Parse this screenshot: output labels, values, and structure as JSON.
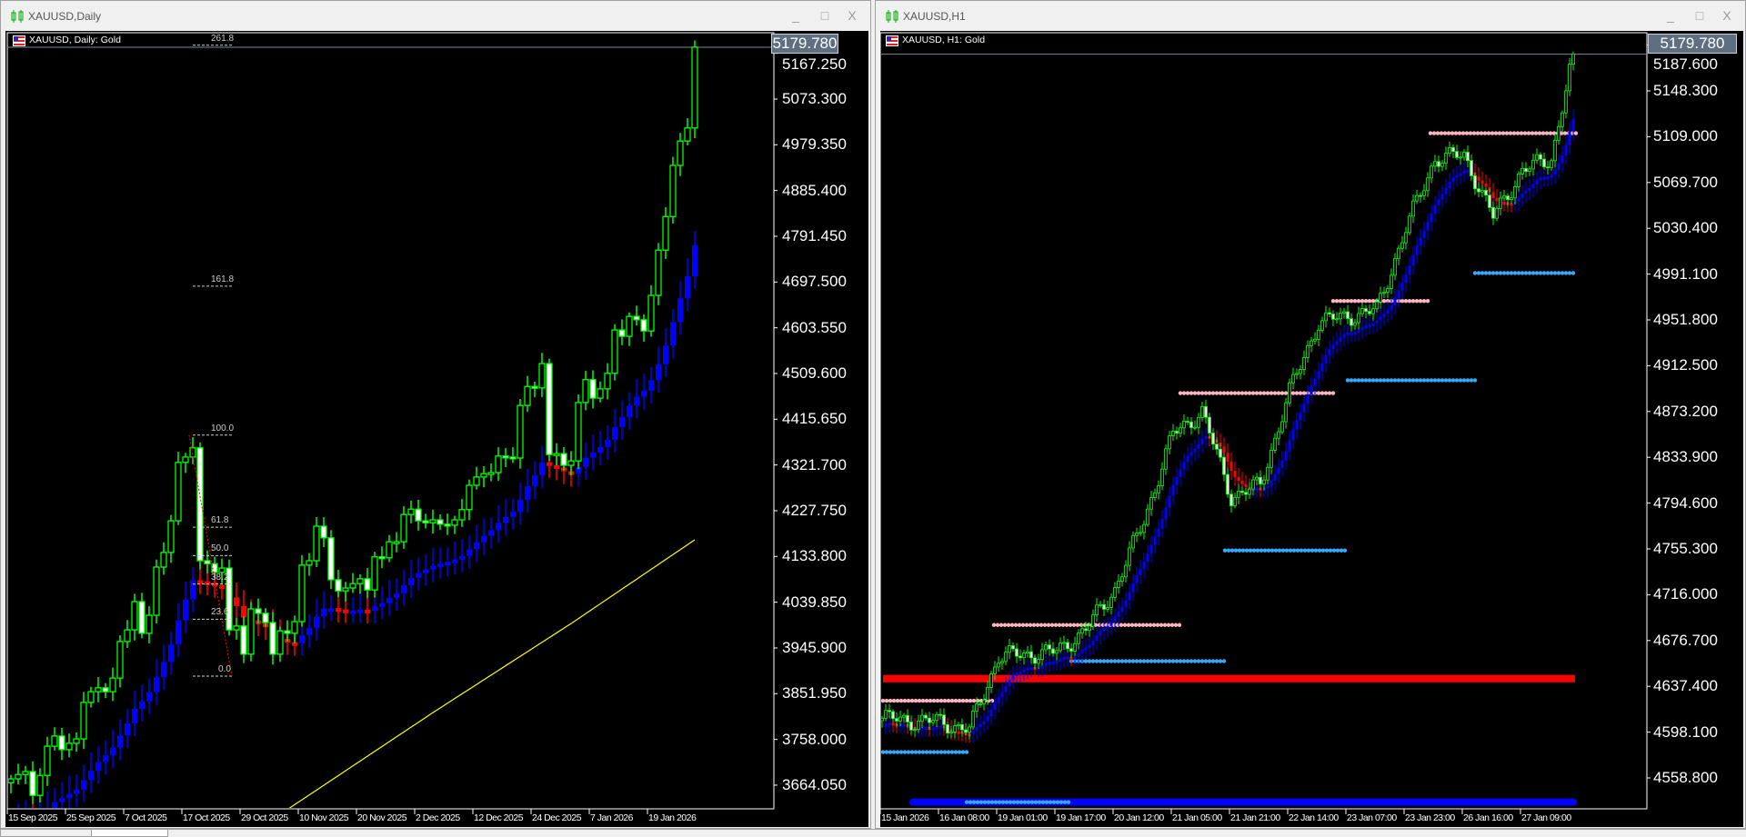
{
  "windows": [
    {
      "title": "XAUUSD,Daily",
      "chart_label": "XAUUSD, Daily:  Gold",
      "current_price": "5179.780",
      "controls": {
        "minimize": "_",
        "maximize": "□",
        "close": "X"
      }
    },
    {
      "title": "XAUUSD,H1",
      "chart_label": "XAUUSD, H1:  Gold",
      "current_price": "5179.780",
      "controls": {
        "minimize": "_",
        "maximize": "□",
        "close": "X"
      }
    }
  ],
  "colors": {
    "background": "#000000",
    "bull_candle": "#00ff00",
    "bear_candle_fill": "#ffffff",
    "trend_up": "#0000ff",
    "trend_down": "#ff0000",
    "moving_average": "#ffff00",
    "resistance_dots": "#ffb6c1",
    "support_dots": "#33aaff",
    "price_box": "#5f6e80"
  },
  "tabs": [
    {
      "active": false
    },
    {
      "active": true
    }
  ],
  "chart_data": [
    {
      "type": "candlestick",
      "symbol": "XAUUSD",
      "timeframe": "Daily",
      "y_tick_labels": [
        "5167.250",
        "5073.300",
        "4979.350",
        "4885.400",
        "4791.450",
        "4697.500",
        "4603.550",
        "4509.600",
        "4415.650",
        "4321.700",
        "4227.750",
        "4133.800",
        "4039.850",
        "3945.900",
        "3851.950",
        "3758.000",
        "3664.050"
      ],
      "x_tick_labels": [
        "15 Sep 2025",
        "25 Sep 2025",
        "7 Oct 2025",
        "17 Oct 2025",
        "29 Oct 2025",
        "10 Nov 2025",
        "20 Nov 2025",
        "2 Dec 2025",
        "12 Dec 2025",
        "24 Dec 2025",
        "7 Jan 2026",
        "19 Jan 2026"
      ],
      "ylim": [
        3620,
        5230
      ],
      "closes": [
        3677,
        3686,
        3692,
        3643,
        3684,
        3744,
        3765,
        3737,
        3750,
        3759,
        3834,
        3856,
        3864,
        3856,
        3884,
        3959,
        3983,
        4041,
        3976,
        4013,
        4112,
        4142,
        4207,
        4327,
        4338,
        4357,
        4125,
        4119,
        4101,
        4110,
        3983,
        3991,
        3933,
        4026,
        4017,
        3998,
        3933,
        3981,
        3976,
        4000,
        4116,
        4125,
        4196,
        4172,
        4086,
        4063,
        4069,
        4078,
        4088,
        4065,
        4133,
        4131,
        4164,
        4164,
        4220,
        4231,
        4207,
        4203,
        4209,
        4200,
        4198,
        4209,
        4230,
        4280,
        4297,
        4304,
        4306,
        4340,
        4338,
        4336,
        4444,
        4483,
        4480,
        4530,
        4343,
        4345,
        4321,
        4330,
        4450,
        4497,
        4459,
        4478,
        4510,
        4599,
        4586,
        4627,
        4620,
        4597,
        4670,
        4763,
        4832,
        4937,
        4987,
        5014,
        5180
      ],
      "last_price": 5179.78,
      "fibonacci": {
        "high": 4383,
        "low": 3888,
        "levels": [
          "0.0",
          "23.6",
          "38.2",
          "50.0",
          "61.8",
          "100.0",
          "161.8",
          "261.8"
        ]
      },
      "moving_average": [
        [
          38,
          3614
        ],
        [
          58,
          3813
        ],
        [
          77,
          3996
        ],
        [
          94,
          4168
        ]
      ]
    },
    {
      "type": "candlestick",
      "symbol": "XAUUSD",
      "timeframe": "H1",
      "y_tick_labels": [
        "5187.600",
        "5148.300",
        "5109.000",
        "5069.700",
        "5030.400",
        "4991.100",
        "4951.800",
        "4912.500",
        "4873.200",
        "4833.900",
        "4794.600",
        "4755.300",
        "4716.000",
        "4676.700",
        "4637.400",
        "4598.100",
        "4558.800"
      ],
      "x_tick_labels": [
        "15 Jan 2026",
        "16 Jan 08:00",
        "19 Jan 01:00",
        "19 Jan 17:00",
        "20 Jan 12:00",
        "21 Jan 05:00",
        "21 Jan 21:00",
        "22 Jan 14:00",
        "23 Jan 07:00",
        "23 Jan 23:00",
        "26 Jan 16:00",
        "27 Jan 09:00"
      ],
      "ylim": [
        4532,
        5200
      ],
      "closes_every_8_hours": [
        4610,
        4608,
        4607,
        4600,
        4663,
        4665,
        4667,
        4686,
        4721,
        4780,
        4854,
        4873,
        4800,
        4810,
        4890,
        4950,
        4955,
        4960,
        5030,
        5090,
        5093,
        5040,
        5080,
        5090,
        5180
      ],
      "last_price": 5179.78,
      "resistance_levels": [
        4625,
        4690,
        4889,
        4968,
        5112
      ],
      "support_levels": [
        4581,
        4659,
        4754,
        4900,
        4992,
        4538
      ],
      "red_level": 4644,
      "blue_level": 4538
    }
  ]
}
